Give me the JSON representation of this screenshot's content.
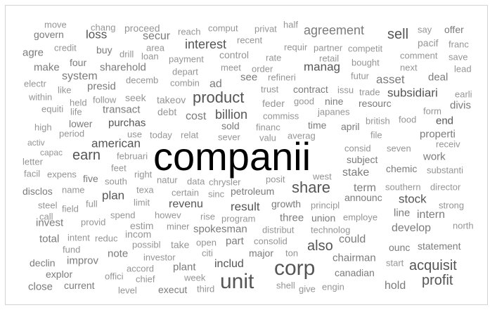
{
  "words": [
    "move",
    "chang",
    "proceed",
    "reach",
    "comput",
    "privat",
    "half",
    "say",
    "offer",
    "govern",
    "loss",
    "secur",
    "recent",
    "agreement",
    "sell",
    "pacif",
    "franc",
    "credit",
    "area",
    "interest",
    "requir",
    "partner",
    "competit",
    "agre",
    "buy",
    "drill",
    "loan",
    "payment",
    "control",
    "rate",
    "retail",
    "comment",
    "save",
    "four",
    "sharehold",
    "meet",
    "order",
    "bought",
    "next",
    "lead",
    "make",
    "manag",
    "electr",
    "system",
    "depart",
    "refineri",
    "futur",
    "deal",
    "presid",
    "decemb",
    "combin",
    "see",
    "asset",
    "like",
    "ad",
    "within",
    "follow",
    "seek",
    "takeov",
    "trust",
    "contract",
    "issu",
    "trade",
    "earli",
    "held",
    "product",
    "feder",
    "good",
    "nine",
    "subsidiari",
    "equiti",
    "life",
    "transact",
    "debt",
    "billion",
    "resourc",
    "divis",
    "cost",
    "commiss",
    "japanes",
    "form",
    "high",
    "lower",
    "purchas",
    "financ",
    "time",
    "april",
    "british",
    "food",
    "end",
    "activ",
    "period",
    "use",
    "today",
    "relat",
    "sever",
    "sold",
    "valu",
    "averag",
    "file",
    "properti",
    "american",
    "receiv",
    "capac",
    "earn",
    "februari",
    "consid",
    "seven",
    "work",
    "letter",
    "feet",
    "companii",
    "subject",
    "facil",
    "expens",
    "right",
    "west",
    "stake",
    "chemic",
    "substanti",
    "five",
    "south",
    "natur",
    "data",
    "chrysler",
    "posit",
    "disclos",
    "name",
    "texa",
    "certain",
    "petroleum",
    "share",
    "term",
    "southern",
    "director",
    "plan",
    "sinc",
    "announc",
    "stock",
    "steel",
    "full",
    "limit",
    "revenu",
    "result",
    "growth",
    "principl",
    "strong",
    "call",
    "field",
    "spend",
    "howev",
    "rise",
    "three",
    "union",
    "employe",
    "line",
    "intern",
    "invest",
    "provid",
    "estim",
    "program",
    "north",
    "miner",
    "spokesman",
    "distribut",
    "technolog",
    "develop",
    "intent",
    "reduc",
    "incom",
    "total",
    "part",
    "could",
    "fund",
    "possibl",
    "take",
    "open",
    "consolid",
    "also",
    "ounc",
    "statement",
    "note",
    "citi",
    "major",
    "ton",
    "declin",
    "improv",
    "investor",
    "plant",
    "includ",
    "corp",
    "chairman",
    "start",
    "acquisit",
    "accord",
    "explor",
    "offici",
    "chief",
    "week",
    "canadian",
    "profit",
    "close",
    "current",
    "level",
    "execut",
    "third",
    "unit",
    "shell",
    "give",
    "engin",
    "hold"
  ],
  "colors": {
    "primary": "#000000",
    "dark": "#555555",
    "mid": "#7b7b7b",
    "light": "#959595"
  }
}
